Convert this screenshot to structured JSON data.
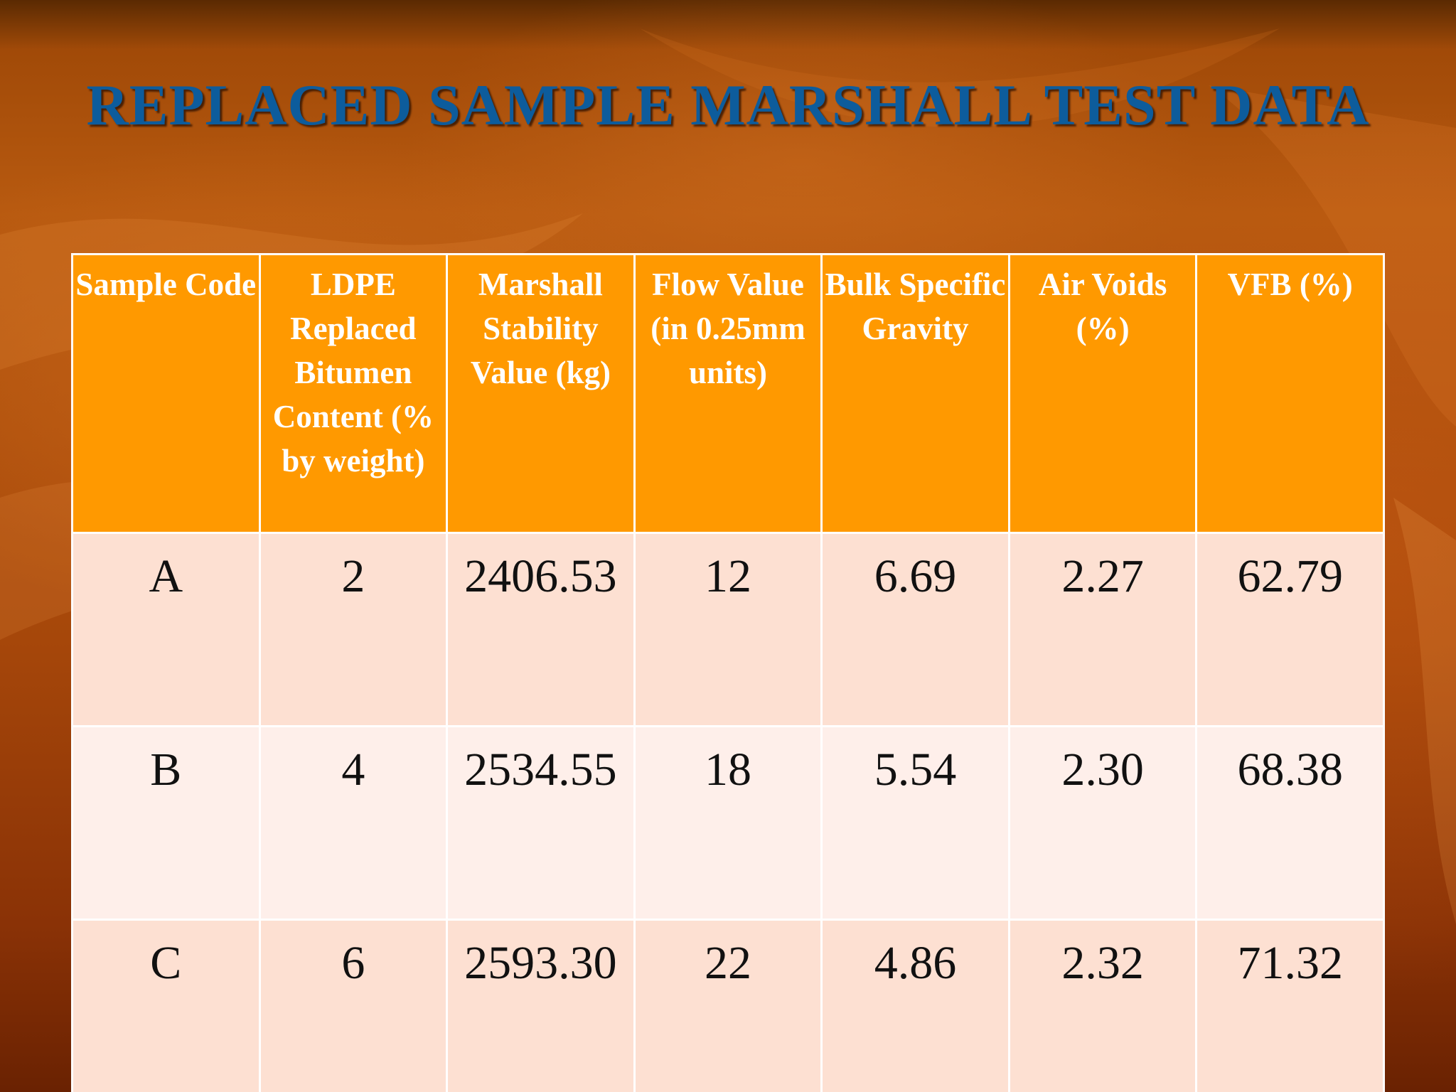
{
  "slide": {
    "title": "REPLACED SAMPLE MARSHALL TEST DATA"
  },
  "table": {
    "headers": [
      "Sample Code",
      "LDPE Replaced Bitumen Content (% by weight)",
      "Marshall Stability Value (kg)",
      "Flow Value (in 0.25mm units)",
      "Bulk Specific Gravity",
      "Air Voids (%)",
      "VFB (%)"
    ],
    "rows": [
      [
        "A",
        "2",
        "2406.53",
        "12",
        "6.69",
        "2.27",
        "62.79"
      ],
      [
        "B",
        "4",
        "2534.55",
        "18",
        "5.54",
        "2.30",
        "68.38"
      ],
      [
        "C",
        "6",
        "2593.30",
        "22",
        "4.86",
        "2.32",
        "71.32"
      ]
    ]
  },
  "colors": {
    "title": "#0d5c9c",
    "header_bg": "#ff9900",
    "row_odd_bg": "#fde0d2",
    "row_even_bg": "#feefea"
  }
}
